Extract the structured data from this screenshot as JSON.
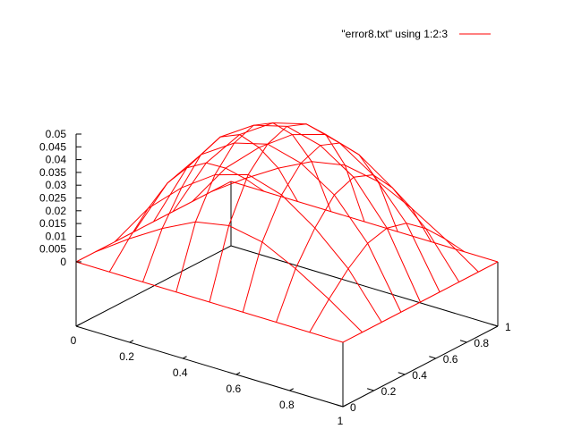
{
  "chart_data": {
    "type": "surface",
    "title": "",
    "legend": {
      "entry": "\"error8.txt\" using 1:2:3",
      "placement": "top-right",
      "color": "#ff0000"
    },
    "x_axis": {
      "range": [
        0,
        1
      ],
      "ticks": [
        "0",
        "0.2",
        "0.4",
        "0.6",
        "0.8",
        "1"
      ]
    },
    "y_axis": {
      "range": [
        0,
        1
      ],
      "ticks": [
        "0",
        "0.2",
        "0.4",
        "0.6",
        "0.8",
        "1"
      ]
    },
    "z_axis": {
      "range": [
        0,
        0.05
      ],
      "ticks": [
        "0",
        "0.005",
        "0.01",
        "0.015",
        "0.02",
        "0.025",
        "0.03",
        "0.035",
        "0.04",
        "0.045",
        "0.05"
      ]
    },
    "grid_x": [
      0,
      0.125,
      0.25,
      0.375,
      0.5,
      0.625,
      0.75,
      0.875,
      1
    ],
    "grid_y": [
      0,
      0.125,
      0.25,
      0.375,
      0.5,
      0.625,
      0.75,
      0.875,
      1
    ],
    "z_values": [
      [
        0,
        0,
        0,
        0,
        0,
        0,
        0,
        0,
        0
      ],
      [
        0,
        0.009,
        0.017,
        0.0235,
        0.026,
        0.0235,
        0.017,
        0.009,
        0
      ],
      [
        0,
        0.017,
        0.029,
        0.038,
        0.042,
        0.038,
        0.029,
        0.017,
        0
      ],
      [
        0,
        0.023,
        0.038,
        0.0465,
        0.05,
        0.0465,
        0.038,
        0.023,
        0
      ],
      [
        0,
        0.025,
        0.041,
        0.0495,
        0.053,
        0.0495,
        0.041,
        0.025,
        0
      ],
      [
        0,
        0.023,
        0.038,
        0.0465,
        0.05,
        0.0465,
        0.038,
        0.023,
        0
      ],
      [
        0,
        0.017,
        0.029,
        0.038,
        0.042,
        0.038,
        0.029,
        0.017,
        0
      ],
      [
        0,
        0.009,
        0.017,
        0.0235,
        0.026,
        0.0235,
        0.017,
        0.009,
        0
      ],
      [
        0,
        0,
        0,
        0,
        0,
        0,
        0,
        0,
        0
      ]
    ],
    "grid": false
  }
}
